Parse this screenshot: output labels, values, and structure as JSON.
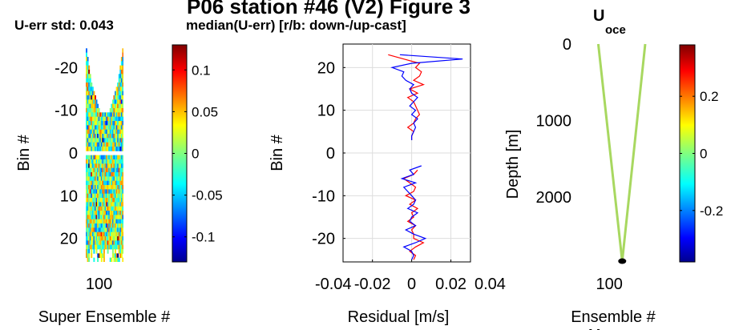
{
  "figure": {
    "title": "P06 station #46 (V2) Figure 3",
    "subtitle_left": "U-err std: 0.043",
    "subtitle_mid": "median(U-err) [r/b: down-/up-cast]",
    "title_right": "U",
    "title_right_sub": "oce",
    "bottom_right_partial": "V"
  },
  "colors": {
    "downcast": "#ff0000",
    "upcast": "#0000ff",
    "profile": "#a8d860",
    "bottom_marker": "#000000"
  },
  "chart_data": [
    {
      "id": "panel-1",
      "type": "heatmap",
      "xlabel": "Super Ensemble #",
      "ylabel": "Bin #",
      "xticks": [
        100
      ],
      "yticks": [
        -20,
        -10,
        0,
        10,
        20
      ],
      "ylim": [
        -25.5,
        25.5
      ],
      "yreversed": true,
      "xlim": [
        70,
        155
      ],
      "colorbar": {
        "ticks": [
          0.1,
          0.05,
          0,
          -0.05,
          -0.1
        ],
        "tick_labels": [
          "0.1",
          "0.05",
          "0",
          "-0.05",
          "-0.1"
        ],
        "clim": [
          -0.13,
          0.13
        ]
      }
    },
    {
      "id": "panel-2",
      "type": "line",
      "xlabel": "Residual [m/s]",
      "ylabel": "Bin #",
      "xticks": [
        -0.04,
        -0.02,
        0,
        0.02,
        0.04
      ],
      "xtick_labels": [
        "-0.04",
        "-0.02",
        "0",
        "0.02",
        "0.04"
      ],
      "yticks": [
        20,
        10,
        0,
        -10,
        -20
      ],
      "xlim": [
        -0.035,
        0.03
      ],
      "ylim": [
        -25.5,
        25.5
      ],
      "grid": true,
      "series": [
        {
          "color": "red",
          "bins": [
            23,
            22,
            21,
            20,
            19,
            18,
            17,
            16,
            15,
            14,
            13,
            12,
            11,
            10,
            9,
            8,
            7,
            6,
            5,
            4,
            3,
            2,
            1,
            0,
            -1,
            -2,
            -3,
            -4,
            -5,
            -6,
            -7,
            -8,
            -9,
            -10,
            -11,
            -12,
            -13,
            -14,
            -15,
            -16,
            -17,
            -18,
            -19,
            -20,
            -21,
            -22,
            -23,
            -24,
            -25
          ],
          "values": [
            -0.012,
            -0.004,
            0.004,
            0.002,
            0.005,
            0.004,
            0.001,
            0.006,
            -0.001,
            0.003,
            -0.002,
            0.001,
            0.002,
            0.003,
            0.004,
            0.002,
            0.001,
            -0.002,
            0.001,
            0.0,
            0.0,
            null,
            null,
            null,
            null,
            null,
            null,
            0.003,
            0.001,
            -0.004,
            -0.001,
            0.002,
            0.001,
            -0.003,
            0.002,
            -0.001,
            0.003,
            0.0,
            0.001,
            -0.002,
            0.002,
            0.0,
            0.001,
            0.001,
            0.006,
            0.002,
            -0.001,
            0.002,
            0.001
          ]
        },
        {
          "color": "blue",
          "bins": [
            23,
            22,
            21,
            20,
            19,
            18,
            17,
            16,
            15,
            14,
            13,
            12,
            11,
            10,
            9,
            8,
            7,
            6,
            5,
            4,
            3,
            2,
            1,
            0,
            -1,
            -2,
            -3,
            -4,
            -5,
            -6,
            -7,
            -8,
            -9,
            -10,
            -11,
            -12,
            -13,
            -14,
            -15,
            -16,
            -17,
            -18,
            -19,
            -20,
            -21,
            -22,
            -23,
            -24,
            -25
          ],
          "values": [
            -0.006,
            0.026,
            0.0,
            -0.01,
            -0.004,
            -0.005,
            -0.003,
            0.001,
            -0.001,
            0.0,
            0.003,
            0.001,
            -0.001,
            0.002,
            0.0,
            0.003,
            0.001,
            0.002,
            0.001,
            0.0,
            0.0,
            null,
            null,
            null,
            null,
            null,
            0.005,
            -0.001,
            0.001,
            -0.005,
            0.002,
            -0.004,
            -0.002,
            0.0,
            0.002,
            0.001,
            -0.002,
            0.003,
            0.0,
            -0.001,
            0.002,
            -0.003,
            0.001,
            0.007,
            0.002,
            -0.004,
            0.0,
            0.001,
            0.0
          ]
        }
      ]
    },
    {
      "id": "panel-3",
      "type": "line",
      "xlabel": "Ensemble #",
      "ylabel": "Depth [m]",
      "xticks": [
        100
      ],
      "yticks": [
        0,
        1000,
        2000
      ],
      "ylim": [
        0,
        2850
      ],
      "xlim": [
        70,
        185
      ],
      "series": [
        {
          "name": "",
          "x": [
            76,
            128
          ],
          "y": [
            0,
            2840
          ]
        },
        {
          "name": "",
          "x": [
            178,
            128
          ],
          "y": [
            0,
            2840
          ]
        }
      ],
      "bottom_marker": {
        "x": 128,
        "y": 2840
      },
      "colorbar": {
        "ticks": [
          0.2,
          0,
          -0.2
        ],
        "tick_labels": [
          "0.2",
          "0",
          "-0.2"
        ],
        "clim": [
          -0.38,
          0.38
        ]
      }
    }
  ]
}
